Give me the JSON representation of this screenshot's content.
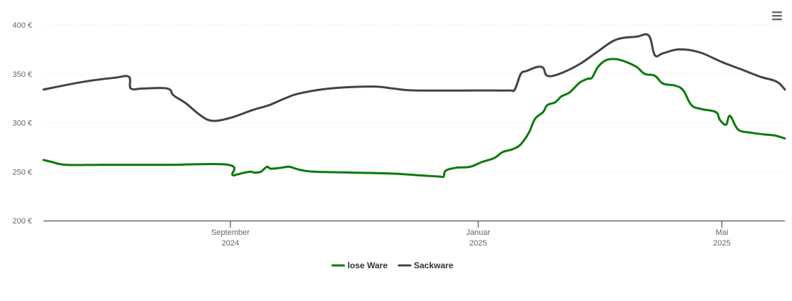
{
  "chart_data": {
    "type": "line",
    "x_range": [
      "2024-06-01",
      "2025-06-01"
    ],
    "ylim": [
      200,
      400
    ],
    "y_ticks": [
      {
        "value": 400,
        "label": "400 €"
      },
      {
        "value": 350,
        "label": "350 €"
      },
      {
        "value": 300,
        "label": "300 €"
      },
      {
        "value": 250,
        "label": "250 €"
      },
      {
        "value": 200,
        "label": "200 €"
      }
    ],
    "x_ticks": [
      {
        "date": "2024-09-01",
        "month": "September",
        "year": "2024"
      },
      {
        "date": "2025-01-01",
        "month": "Januar",
        "year": "2025"
      },
      {
        "date": "2025-05-01",
        "month": "Mai",
        "year": "2025"
      }
    ],
    "grid": true,
    "legend_position": "bottom",
    "series": [
      {
        "name": "lose Ware",
        "color": "#0a7a0a",
        "points": [
          [
            "2024-06-01",
            262
          ],
          [
            "2024-06-05",
            260
          ],
          [
            "2024-06-12",
            257
          ],
          [
            "2024-07-01",
            257
          ],
          [
            "2024-08-01",
            257
          ],
          [
            "2024-08-31",
            257
          ],
          [
            "2024-09-02",
            247
          ],
          [
            "2024-09-04",
            247
          ],
          [
            "2024-09-08",
            249
          ],
          [
            "2024-09-11",
            250
          ],
          [
            "2024-09-13",
            249
          ],
          [
            "2024-09-16",
            250
          ],
          [
            "2024-09-19",
            255
          ],
          [
            "2024-09-21",
            253
          ],
          [
            "2024-09-26",
            254
          ],
          [
            "2024-09-30",
            255
          ],
          [
            "2024-10-05",
            252
          ],
          [
            "2024-10-12",
            250
          ],
          [
            "2024-11-01",
            249
          ],
          [
            "2024-11-20",
            248
          ],
          [
            "2024-12-05",
            246
          ],
          [
            "2024-12-13",
            245
          ],
          [
            "2024-12-15",
            245
          ],
          [
            "2024-12-16",
            251
          ],
          [
            "2024-12-21",
            254
          ],
          [
            "2024-12-28",
            255
          ],
          [
            "2025-01-03",
            260
          ],
          [
            "2025-01-09",
            264
          ],
          [
            "2025-01-13",
            270
          ],
          [
            "2025-01-18",
            273
          ],
          [
            "2025-01-22",
            278
          ],
          [
            "2025-01-26",
            290
          ],
          [
            "2025-01-29",
            304
          ],
          [
            "2025-02-02",
            311
          ],
          [
            "2025-02-04",
            318
          ],
          [
            "2025-02-08",
            321
          ],
          [
            "2025-02-11",
            327
          ],
          [
            "2025-02-15",
            331
          ],
          [
            "2025-02-20",
            341
          ],
          [
            "2025-02-24",
            345
          ],
          [
            "2025-02-26",
            346
          ],
          [
            "2025-03-01",
            357
          ],
          [
            "2025-03-05",
            364
          ],
          [
            "2025-03-10",
            365
          ],
          [
            "2025-03-15",
            362
          ],
          [
            "2025-03-20",
            357
          ],
          [
            "2025-03-24",
            350
          ],
          [
            "2025-03-29",
            348
          ],
          [
            "2025-04-02",
            340
          ],
          [
            "2025-04-08",
            338
          ],
          [
            "2025-04-12",
            333
          ],
          [
            "2025-04-16",
            318
          ],
          [
            "2025-04-21",
            314
          ],
          [
            "2025-04-28",
            311
          ],
          [
            "2025-05-05",
            307
          ],
          [
            "2025-04-30",
            303
          ],
          [
            "2025-05-03",
            298
          ],
          [
            "2025-05-09",
            293
          ],
          [
            "2025-05-15",
            290
          ],
          [
            "2025-05-22",
            288
          ],
          [
            "2025-05-27",
            287
          ],
          [
            "2025-06-01",
            284
          ]
        ]
      },
      {
        "name": "Sackware",
        "color": "#434348",
        "points": [
          [
            "2024-06-01",
            334
          ],
          [
            "2024-06-21",
            342
          ],
          [
            "2024-07-06",
            346
          ],
          [
            "2024-07-13",
            347
          ],
          [
            "2024-07-14",
            335
          ],
          [
            "2024-07-20",
            335
          ],
          [
            "2024-08-01",
            335
          ],
          [
            "2024-08-04",
            328
          ],
          [
            "2024-08-10",
            320
          ],
          [
            "2024-08-17",
            308
          ],
          [
            "2024-08-23",
            302
          ],
          [
            "2024-09-01",
            305
          ],
          [
            "2024-09-12",
            313
          ],
          [
            "2024-09-20",
            318
          ],
          [
            "2024-09-28",
            325
          ],
          [
            "2024-10-05",
            330
          ],
          [
            "2024-10-20",
            335
          ],
          [
            "2024-11-10",
            337
          ],
          [
            "2024-11-20",
            335
          ],
          [
            "2024-12-01",
            333
          ],
          [
            "2025-01-01",
            333
          ],
          [
            "2025-01-16",
            333
          ],
          [
            "2025-01-19",
            334
          ],
          [
            "2025-01-22",
            350
          ],
          [
            "2025-01-25",
            353
          ],
          [
            "2025-01-30",
            357
          ],
          [
            "2025-02-02",
            356
          ],
          [
            "2025-02-04",
            348
          ],
          [
            "2025-02-10",
            350
          ],
          [
            "2025-02-20",
            360
          ],
          [
            "2025-03-01",
            373
          ],
          [
            "2025-03-10",
            385
          ],
          [
            "2025-03-20",
            388
          ],
          [
            "2025-03-26",
            389
          ],
          [
            "2025-03-29",
            369
          ],
          [
            "2025-04-02",
            371
          ],
          [
            "2025-04-10",
            375
          ],
          [
            "2025-04-20",
            372
          ],
          [
            "2025-05-01",
            362
          ],
          [
            "2025-05-10",
            355
          ],
          [
            "2025-05-20",
            347
          ],
          [
            "2025-05-28",
            342
          ],
          [
            "2025-06-01",
            334
          ]
        ]
      }
    ]
  },
  "menu": {
    "icon": "hamburger-menu-icon"
  }
}
